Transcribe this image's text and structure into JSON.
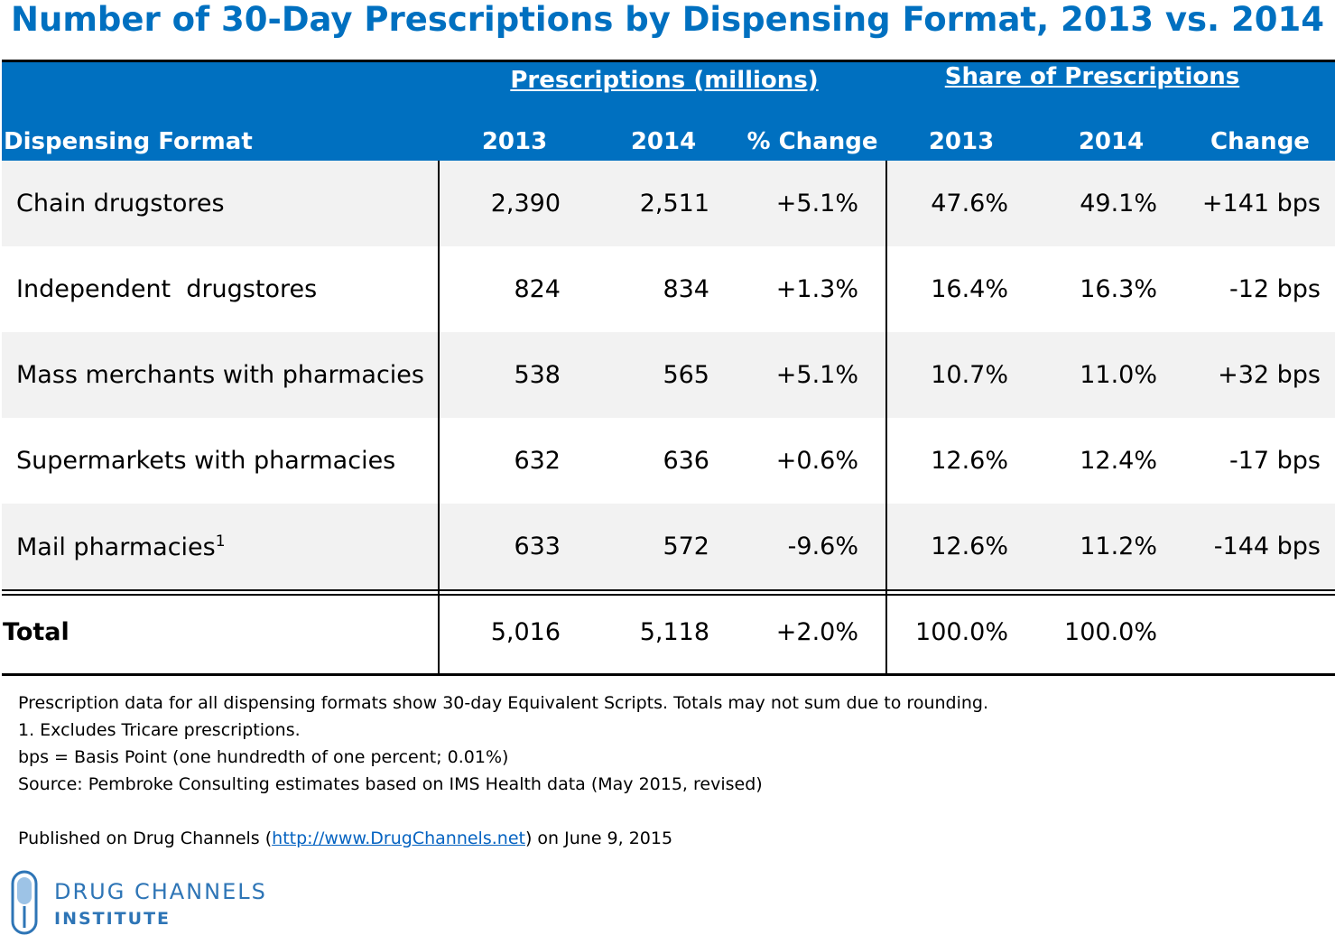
{
  "title": "Number of 30-Day Prescriptions by Dispensing Format, 2013 vs. 2014",
  "table": {
    "group_headers": [
      "Prescriptions (millions)",
      "Share of Prescriptions"
    ],
    "columns": [
      "Dispensing Format",
      "2013",
      "2014",
      "% Change",
      "2013",
      "2014",
      "Change"
    ],
    "rows": [
      {
        "cells": [
          "Chain drugstores",
          "2,390",
          "2,511",
          "+5.1%",
          "47.6%",
          "49.1%",
          "+141 bps"
        ]
      },
      {
        "cells": [
          "Independent  drugstores",
          "824",
          "834",
          "+1.3%",
          "16.4%",
          "16.3%",
          "-12 bps"
        ]
      },
      {
        "cells": [
          "Mass merchants with pharmacies",
          "538",
          "565",
          "+5.1%",
          "10.7%",
          "11.0%",
          "+32 bps"
        ]
      },
      {
        "cells": [
          "Supermarkets with pharmacies",
          "632",
          "636",
          "+0.6%",
          "12.6%",
          "12.4%",
          "-17 bps"
        ]
      },
      {
        "cells": [
          "Mail pharmacies",
          "633",
          "572",
          "-9.6%",
          "12.6%",
          "11.2%",
          "-144 bps"
        ],
        "note": "1"
      }
    ],
    "total": [
      "Total",
      "5,016",
      "5,118",
      "+2.0%",
      "100.0%",
      "100.0%"
    ]
  },
  "notes": [
    "Prescription data for all dispensing formats show 30-day Equivalent Scripts. Totals may not sum due to rounding.",
    "1. Excludes Tricare prescriptions.",
    "bps = Basis Point (one hundredth of one percent; 0.01%)",
    "Source: Pembroke Consulting estimates based on IMS Health data (May 2015, revised)"
  ],
  "published": {
    "before": "Published on Drug Channels (",
    "link": "http://www.DrugChannels.net",
    "after": ") on June 9, 2015"
  },
  "logo": {
    "line1": "DRUG CHANNELS",
    "line2": "INSTITUTE"
  }
}
